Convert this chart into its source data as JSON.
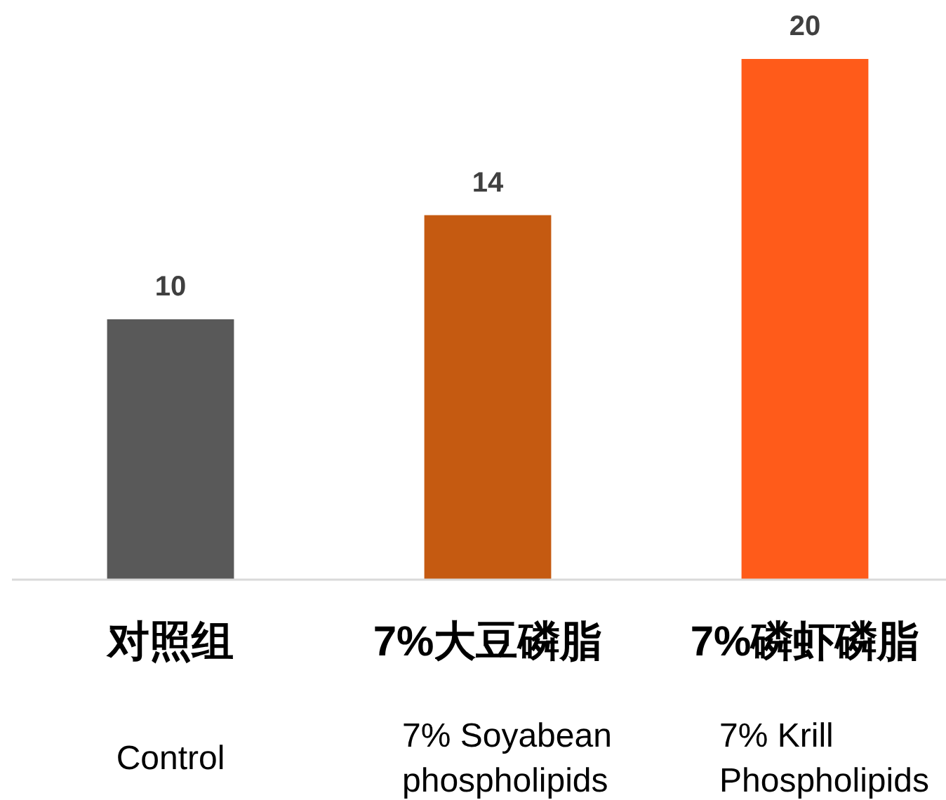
{
  "chart_data": {
    "type": "bar",
    "categories": [
      "对照组",
      "7%大豆磷脂",
      "7%磷虾磷脂"
    ],
    "values": [
      10,
      14,
      20
    ],
    "colors": [
      "#595959",
      "#c55a11",
      "#ff5b1a"
    ],
    "data_labels": true,
    "annotations": [
      "Control",
      "7% Soyabean phospholipids",
      "7% Krill Phospholipids"
    ]
  }
}
